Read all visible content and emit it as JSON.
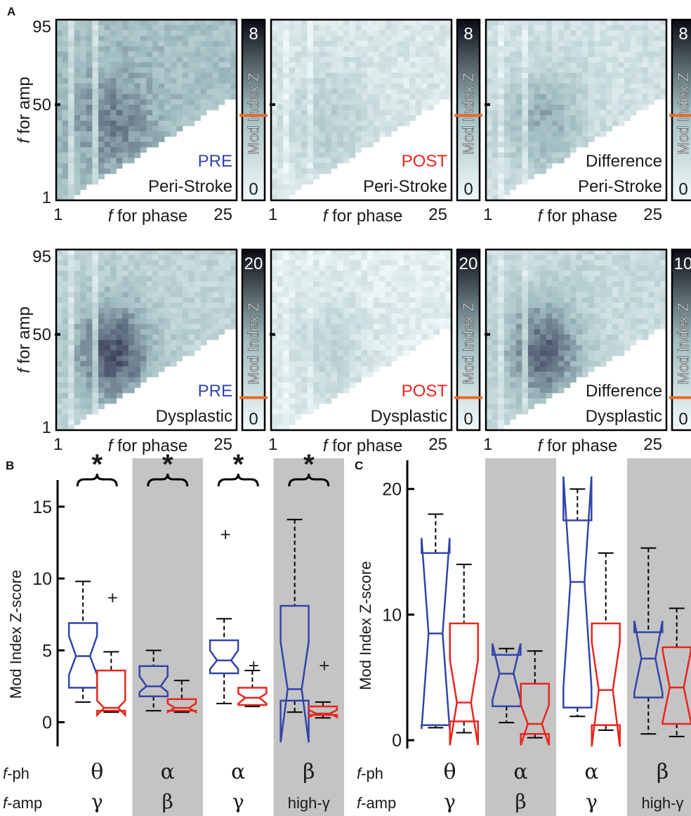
{
  "panel_labels": {
    "a": "A",
    "b": "B",
    "c": "C"
  },
  "colors": {
    "pre": "#3345a8",
    "post": "#e8261d",
    "text": "#1a1a1a",
    "shade": "#c4c4c4",
    "marker": "#e86a2a",
    "heat_low": "#f2fafa",
    "heat_mid": "#9fbcc0",
    "heat_high": "#2a2a4a"
  },
  "axes": {
    "amp_label": "for amp",
    "amp_f": "f",
    "phase_label": "for phase",
    "phase_f": "f",
    "amp_ticks": [
      "95",
      "50",
      "1"
    ],
    "phase_ticks": [
      "1",
      "25"
    ],
    "colorbar_label": "Mod Index Z"
  },
  "chart_data": [
    {
      "type": "heatmap",
      "panel": "A",
      "rows": [
        {
          "heatmaps": [
            {
              "line1": "PRE",
              "line1_color": "#3345a8",
              "line2": "Peri-Stroke",
              "cbar_max": "8",
              "cbar_min": "0",
              "intensity": [
                0.7,
                0.45
              ]
            },
            {
              "line1": "POST",
              "line1_color": "#e8261d",
              "line2": "Peri-Stroke",
              "cbar_max": "8",
              "cbar_min": "0",
              "intensity": [
                0.35,
                0.15
              ]
            },
            {
              "line1": "Difference",
              "line1_color": "#1a1a1a",
              "line2": "Peri-Stroke",
              "cbar_max": "8",
              "cbar_min": "0",
              "intensity": [
                0.55,
                0.2
              ]
            }
          ]
        },
        {
          "heatmaps": [
            {
              "line1": "PRE",
              "line1_color": "#3345a8",
              "line2": "Dysplastic",
              "cbar_max": "20",
              "cbar_min": "0",
              "intensity": [
                0.85,
                0.3
              ]
            },
            {
              "line1": "POST",
              "line1_color": "#e8261d",
              "line2": "Dysplastic",
              "cbar_max": "20",
              "cbar_min": "0",
              "intensity": [
                0.3,
                0.1
              ]
            },
            {
              "line1": "Difference",
              "line1_color": "#1a1a1a",
              "line2": "Dysplastic",
              "cbar_max": "10",
              "cbar_min": "0",
              "intensity": [
                0.8,
                0.25
              ]
            }
          ]
        }
      ]
    },
    {
      "type": "box",
      "panel": "B",
      "ylabel": "Mod Index Z-score",
      "ylim": [
        -1,
        17
      ],
      "yticks": [
        "0",
        "5",
        "10",
        "15"
      ],
      "significance": "*",
      "groups": [
        {
          "ph": "θ",
          "amp": "γ",
          "shaded": false,
          "sig": true,
          "pre": {
            "whislo": 1.4,
            "q1": 2.4,
            "med": 4.6,
            "q3": 6.9,
            "whishi": 9.8,
            "notch": [
              3.3,
              6.0
            ],
            "outliers": []
          },
          "post": {
            "whislo": 0.7,
            "q1": 0.8,
            "med": 1.0,
            "q3": 3.6,
            "whishi": 4.9,
            "notch": [
              0.5,
              1.5
            ],
            "outliers": [
              8.7
            ]
          }
        },
        {
          "ph": "α",
          "amp": "β",
          "shaded": true,
          "sig": true,
          "pre": {
            "whislo": 0.8,
            "q1": 1.8,
            "med": 2.5,
            "q3": 3.9,
            "whishi": 5.0,
            "notch": [
              2.1,
              3.2
            ],
            "outliers": []
          },
          "post": {
            "whislo": 0.7,
            "q1": 0.8,
            "med": 1.0,
            "q3": 1.6,
            "whishi": 2.9,
            "notch": [
              0.7,
              1.3
            ],
            "outliers": []
          }
        },
        {
          "ph": "α",
          "amp": "γ",
          "shaded": false,
          "sig": true,
          "pre": {
            "whislo": 1.3,
            "q1": 3.4,
            "med": 4.3,
            "q3": 5.7,
            "whishi": 7.2,
            "notch": [
              3.7,
              5.0
            ],
            "outliers": [
              13.1
            ]
          },
          "post": {
            "whislo": 1.1,
            "q1": 1.2,
            "med": 1.7,
            "q3": 2.4,
            "whishi": 3.6,
            "notch": [
              1.3,
              2.0
            ],
            "outliers": [
              4.0
            ]
          }
        },
        {
          "ph": "β",
          "amp": "high-γ",
          "shaded": true,
          "sig": true,
          "pre": {
            "whislo": 0.7,
            "q1": 1.5,
            "med": 2.3,
            "q3": 8.1,
            "whishi": 14.1,
            "notch": [
              -1.4,
              5.6
            ],
            "outliers": []
          },
          "post": {
            "whislo": 0.3,
            "q1": 0.5,
            "med": 0.6,
            "q3": 1.1,
            "whishi": 1.4,
            "notch": [
              0.35,
              0.85
            ],
            "outliers": [
              4.0
            ]
          }
        }
      ]
    },
    {
      "type": "box",
      "panel": "C",
      "ylabel": "Mod Index Z-score",
      "ylim": [
        -1.5,
        22
      ],
      "yticks": [
        "0",
        "10",
        "20"
      ],
      "groups": [
        {
          "ph": "θ",
          "amp": "γ",
          "shaded": false,
          "pre": {
            "whislo": 1.0,
            "q1": 1.2,
            "med": 8.5,
            "q3": 14.9,
            "whishi": 18.0,
            "notch": [
              0.9,
              16.1
            ],
            "outliers": []
          },
          "post": {
            "whislo": 0.6,
            "q1": 1.5,
            "med": 3.0,
            "q3": 9.3,
            "whishi": 14.0,
            "notch": [
              -0.4,
              6.4
            ],
            "outliers": []
          }
        },
        {
          "ph": "α",
          "amp": "β",
          "shaded": true,
          "pre": {
            "whislo": 1.4,
            "q1": 2.7,
            "med": 5.3,
            "q3": 6.8,
            "whishi": 7.3,
            "notch": [
              3.2,
              7.7
            ],
            "outliers": []
          },
          "post": {
            "whislo": 0.2,
            "q1": 0.5,
            "med": 1.3,
            "q3": 4.5,
            "whishi": 7.1,
            "notch": [
              -0.4,
              2.8
            ],
            "outliers": []
          }
        },
        {
          "ph": "α",
          "amp": "γ",
          "shaded": false,
          "pre": {
            "whislo": 1.9,
            "q1": 2.6,
            "med": 12.6,
            "q3": 17.5,
            "whishi": 20.0,
            "notch": [
              4.2,
              21.0
            ],
            "outliers": []
          },
          "post": {
            "whislo": 0.8,
            "q1": 1.2,
            "med": 4.0,
            "q3": 9.3,
            "whishi": 14.9,
            "notch": [
              -0.5,
              7.8
            ],
            "outliers": []
          }
        },
        {
          "ph": "β",
          "amp": "high-γ",
          "shaded": true,
          "pre": {
            "whislo": 0.5,
            "q1": 3.4,
            "med": 6.5,
            "q3": 8.6,
            "whishi": 15.3,
            "notch": [
              3.8,
              9.5
            ],
            "outliers": []
          },
          "post": {
            "whislo": 0.3,
            "q1": 1.3,
            "med": 4.2,
            "q3": 7.4,
            "whishi": 10.5,
            "notch": [
              1.5,
              7.1
            ],
            "outliers": []
          }
        }
      ]
    }
  ],
  "row_labels": {
    "f": "f",
    "ph": "-ph",
    "amp": "-amp"
  }
}
